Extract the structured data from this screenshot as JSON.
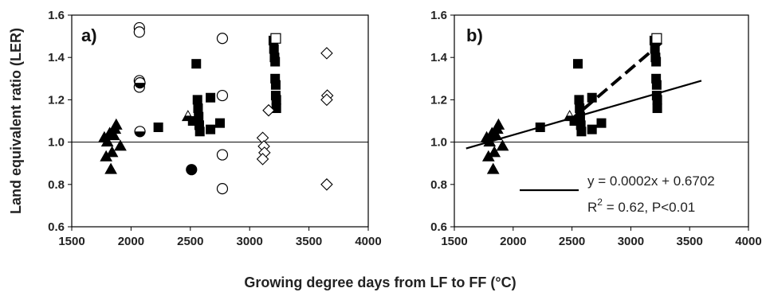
{
  "figure": {
    "ylabel": "Land equivalent ratio (LER)",
    "xlabel": "Growing degree days from LF to FF (°C)"
  },
  "chart_data": [
    {
      "type": "scatter",
      "panel": "a)",
      "xlim": [
        1500,
        4000
      ],
      "ylim": [
        0.6,
        1.6
      ],
      "xticks": [
        1500,
        2000,
        2500,
        3000,
        3500,
        4000
      ],
      "yticks": [
        0.6,
        0.8,
        1.0,
        1.2,
        1.4,
        1.6
      ],
      "ytick_labels": [
        "0.6",
        "0.8",
        "1.0",
        "1.2",
        "1.4",
        "1.6"
      ],
      "reference_line_y": 1.0,
      "grid": false,
      "series": [
        {
          "marker": "filled-triangle",
          "points": [
            [
              1775,
              1.02
            ],
            [
              1790,
              0.93
            ],
            [
              1800,
              1.0
            ],
            [
              1820,
              1.04
            ],
            [
              1830,
              0.87
            ],
            [
              1840,
              0.95
            ],
            [
              1855,
              1.03
            ],
            [
              1865,
              1.06
            ],
            [
              1875,
              1.08
            ],
            [
              1910,
              0.98
            ]
          ]
        },
        {
          "marker": "open-circle",
          "points": [
            [
              2070,
              1.54
            ],
            [
              2070,
              1.52
            ],
            [
              2070,
              1.29
            ],
            [
              2070,
              1.26
            ],
            [
              2770,
              1.49
            ],
            [
              2770,
              1.22
            ],
            [
              2770,
              0.94
            ],
            [
              2770,
              0.78
            ]
          ]
        },
        {
          "marker": "half-filled-circle",
          "points": [
            [
              2075,
              1.28
            ],
            [
              2075,
              1.05
            ]
          ]
        },
        {
          "marker": "filled-circle",
          "points": [
            [
              2510,
              0.87
            ]
          ]
        },
        {
          "marker": "filled-square",
          "points": [
            [
              2230,
              1.07
            ],
            [
              2520,
              1.1
            ],
            [
              2550,
              1.37
            ],
            [
              2560,
              1.2
            ],
            [
              2565,
              1.16
            ],
            [
              2570,
              1.12
            ],
            [
              2575,
              1.08
            ],
            [
              2580,
              1.05
            ],
            [
              2670,
              1.21
            ],
            [
              2670,
              1.06
            ],
            [
              2750,
              1.09
            ],
            [
              3200,
              1.48
            ],
            [
              3205,
              1.44
            ],
            [
              3210,
              1.4
            ],
            [
              3215,
              1.38
            ],
            [
              3215,
              1.3
            ],
            [
              3220,
              1.27
            ],
            [
              3220,
              1.22
            ],
            [
              3225,
              1.2
            ],
            [
              3225,
              1.16
            ]
          ]
        },
        {
          "marker": "open-square",
          "points": [
            [
              3220,
              1.49
            ]
          ]
        },
        {
          "marker": "open-diamond",
          "points": [
            [
              3110,
              1.02
            ],
            [
              3120,
              0.98
            ],
            [
              3125,
              0.95
            ],
            [
              3110,
              0.92
            ],
            [
              3160,
              1.15
            ],
            [
              3650,
              1.42
            ],
            [
              3655,
              1.22
            ],
            [
              3650,
              1.2
            ],
            [
              3650,
              0.8
            ]
          ]
        },
        {
          "marker": "half-filled-triangle",
          "points": [
            [
              2480,
              1.12
            ]
          ]
        }
      ]
    },
    {
      "type": "scatter",
      "panel": "b)",
      "xlim": [
        1500,
        4000
      ],
      "ylim": [
        0.6,
        1.6
      ],
      "xticks": [
        1500,
        2000,
        2500,
        3000,
        3500,
        4000
      ],
      "yticks": [
        0.6,
        0.8,
        1.0,
        1.2,
        1.4,
        1.6
      ],
      "ytick_labels": [
        "0.6",
        "0.8",
        "1.0",
        "1.2",
        "1.4",
        "1.6"
      ],
      "reference_line_y": 1.0,
      "grid": false,
      "series": [
        {
          "marker": "filled-triangle",
          "points": [
            [
              1775,
              1.02
            ],
            [
              1790,
              0.93
            ],
            [
              1800,
              1.0
            ],
            [
              1820,
              1.04
            ],
            [
              1830,
              0.87
            ],
            [
              1840,
              0.95
            ],
            [
              1855,
              1.03
            ],
            [
              1865,
              1.06
            ],
            [
              1875,
              1.08
            ],
            [
              1910,
              0.98
            ]
          ]
        },
        {
          "marker": "filled-square",
          "points": [
            [
              2230,
              1.07
            ],
            [
              2520,
              1.1
            ],
            [
              2550,
              1.37
            ],
            [
              2560,
              1.2
            ],
            [
              2565,
              1.16
            ],
            [
              2570,
              1.12
            ],
            [
              2575,
              1.08
            ],
            [
              2580,
              1.05
            ],
            [
              2670,
              1.21
            ],
            [
              2670,
              1.06
            ],
            [
              2750,
              1.09
            ],
            [
              3200,
              1.48
            ],
            [
              3205,
              1.44
            ],
            [
              3210,
              1.4
            ],
            [
              3215,
              1.38
            ],
            [
              3215,
              1.3
            ],
            [
              3220,
              1.27
            ],
            [
              3220,
              1.22
            ],
            [
              3225,
              1.2
            ],
            [
              3225,
              1.16
            ]
          ]
        },
        {
          "marker": "open-square",
          "points": [
            [
              3220,
              1.49
            ]
          ]
        },
        {
          "marker": "half-filled-triangle",
          "points": [
            [
              2480,
              1.12
            ]
          ]
        }
      ],
      "lines": [
        {
          "style": "solid",
          "x": [
            1600,
            3600
          ],
          "y": [
            0.97,
            1.29
          ]
        },
        {
          "style": "dashed",
          "x": [
            2480,
            3260
          ],
          "y": [
            1.1,
            1.47
          ]
        }
      ],
      "legend_line": {
        "style": "solid",
        "placement": "lower-right"
      },
      "annotation": {
        "equation": "y = 0.0002x + 0.6702",
        "r2_prefix": "R",
        "r2_sup": "2",
        "r2_rest": " = 0.62,  P<0.01"
      }
    }
  ]
}
